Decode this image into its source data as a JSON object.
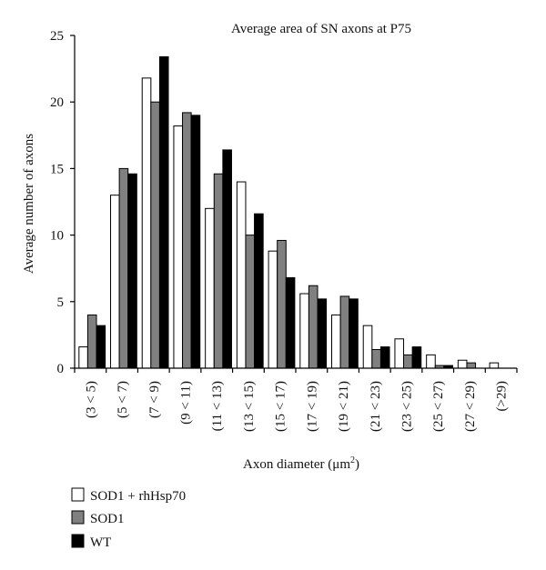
{
  "chart_data": {
    "type": "bar",
    "title": "Average area of SN axons at P75",
    "xlabel": "Axon diameter (μm",
    "xlabel_sup": "2",
    "xlabel_close": ")",
    "ylabel": "Average number of axons",
    "ylim": [
      0,
      25
    ],
    "yticks": [
      0,
      5,
      10,
      15,
      20,
      25
    ],
    "grid": false,
    "legend_position": "bottom-left",
    "categories": [
      "(3 < 5)",
      "(5 < 7)",
      "(7 < 9)",
      "(9 < 11)",
      "(11 < 13)",
      "(13 < 15)",
      "(15 < 17)",
      "(17 < 19)",
      "(19 < 21)",
      "(21 < 23)",
      "(23 < 25)",
      "(25 < 27)",
      "(27 < 29)",
      "(>29)"
    ],
    "series": [
      {
        "name": "SOD1 + rhHsp70",
        "color": "#ffffff",
        "values": [
          1.6,
          13.0,
          21.8,
          18.2,
          12.0,
          14.0,
          8.8,
          5.6,
          4.0,
          3.2,
          2.2,
          1.0,
          0.6,
          0.4
        ]
      },
      {
        "name": "SOD1",
        "color": "#808080",
        "values": [
          4.0,
          15.0,
          20.0,
          19.2,
          14.6,
          10.0,
          9.6,
          6.2,
          5.4,
          1.4,
          1.0,
          0.2,
          0.4,
          0.0
        ]
      },
      {
        "name": "WT",
        "color": "#000000",
        "values": [
          3.2,
          14.6,
          23.4,
          19.0,
          16.4,
          11.6,
          6.8,
          5.2,
          5.2,
          1.6,
          1.6,
          0.2,
          0.0,
          0.0
        ]
      }
    ]
  }
}
